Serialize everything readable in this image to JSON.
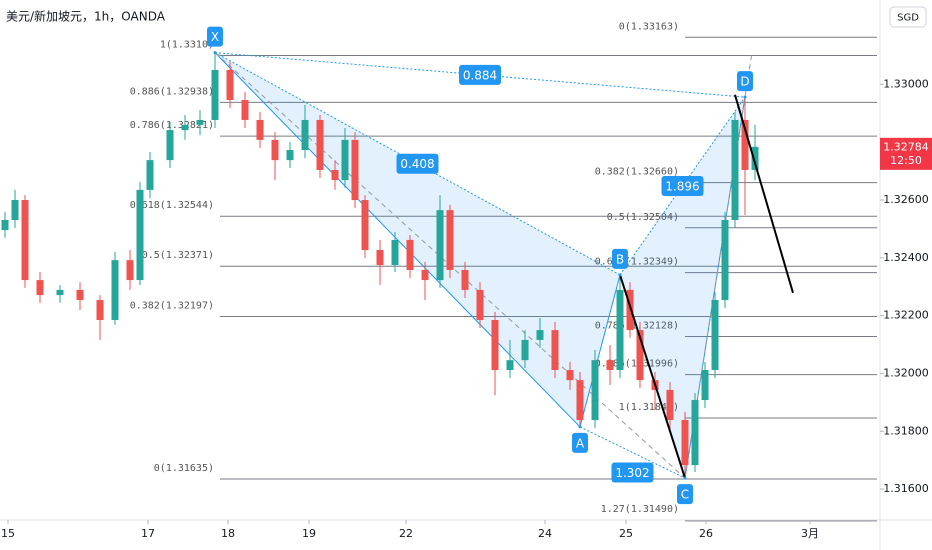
{
  "chart_data": {
    "type": "candlestick",
    "title": "美元/新加坡元，1h，OANDA",
    "currency": "SGD",
    "last_price": 1.32784,
    "countdown": "12:50",
    "up_color": "#26a69a",
    "down_color": "#ef5350",
    "x": [
      1,
      3,
      5,
      8,
      12,
      16,
      20,
      23,
      26,
      28,
      30,
      34,
      37,
      40,
      43,
      46,
      49,
      52,
      55,
      58,
      61,
      64,
      67,
      69,
      71,
      73,
      76,
      79,
      82,
      85,
      88,
      90,
      93,
      96,
      99,
      102,
      105,
      108,
      111,
      114,
      116,
      119,
      122,
      124,
      126,
      128,
      131,
      134,
      137,
      139,
      141,
      143,
      145,
      147,
      149,
      151
    ],
    "open": [
      1.32496,
      1.32531,
      1.326,
      1.32323,
      1.32271,
      1.32289,
      1.32254,
      1.32185,
      1.32392,
      1.32323,
      1.32635,
      1.32738,
      1.32842,
      1.3286,
      1.32877,
      1.3305,
      1.32946,
      1.32877,
      1.32808,
      1.32738,
      1.32773,
      1.32877,
      1.32704,
      1.32669,
      1.32808,
      1.326,
      1.32427,
      1.32375,
      1.32462,
      1.32358,
      1.32323,
      1.32565,
      1.32358,
      1.32289,
      1.32185,
      1.32012,
      1.32046,
      1.32116,
      1.3215,
      1.32012,
      1.31977,
      1.31839,
      1.32046,
      1.32012,
      1.32289,
      1.3215,
      1.31977,
      1.31943,
      1.31839,
      1.31683,
      1.31908,
      1.32012,
      1.32254,
      1.32531,
      1.32877,
      1.32704
    ],
    "high": [
      1.32559,
      1.32635,
      1.32617,
      1.32351,
      1.32306,
      1.32316,
      1.32271,
      1.3242,
      1.32427,
      1.32662,
      1.32766,
      1.3287,
      1.32894,
      1.32911,
      1.33112,
      1.33078,
      1.32974,
      1.32905,
      1.32835,
      1.32801,
      1.32929,
      1.32894,
      1.32738,
      1.32849,
      1.32835,
      1.32617,
      1.32462,
      1.32489,
      1.32479,
      1.32386,
      1.32617,
      1.32583,
      1.32386,
      1.32316,
      1.32213,
      1.32116,
      1.3215,
      1.32192,
      1.32178,
      1.3204,
      1.32005,
      1.32081,
      1.32098,
      1.32341,
      1.32316,
      1.32178,
      1.32005,
      1.3197,
      1.31867,
      1.31932,
      1.3204,
      1.32282,
      1.32559,
      1.32905,
      1.32956,
      1.3286
    ],
    "low": [
      1.32469,
      1.32503,
      1.32296,
      1.32244,
      1.32244,
      1.32219,
      1.32116,
      1.32168,
      1.32289,
      1.32306,
      1.32607,
      1.32711,
      1.32808,
      1.32825,
      1.32849,
      1.32918,
      1.32849,
      1.3278,
      1.32669,
      1.32711,
      1.32745,
      1.32676,
      1.32635,
      1.32642,
      1.32572,
      1.32399,
      1.32306,
      1.32351,
      1.3233,
      1.32254,
      1.32296,
      1.3233,
      1.32261,
      1.32157,
      1.31925,
      1.31984,
      1.32019,
      1.32088,
      1.31984,
      1.31943,
      1.31815,
      1.31811,
      1.3196,
      1.31984,
      1.32123,
      1.3195,
      1.31873,
      1.31804,
      1.31638,
      1.31659,
      1.3188,
      1.31984,
      1.32226,
      1.32503,
      1.32548,
      1.32669
    ],
    "close": [
      1.32531,
      1.326,
      1.32323,
      1.32271,
      1.32289,
      1.32254,
      1.32185,
      1.32392,
      1.32323,
      1.32635,
      1.32738,
      1.32842,
      1.3286,
      1.32877,
      1.3305,
      1.32946,
      1.32877,
      1.32808,
      1.32738,
      1.32773,
      1.32877,
      1.32704,
      1.32669,
      1.32808,
      1.326,
      1.32427,
      1.32375,
      1.32462,
      1.32358,
      1.32323,
      1.32565,
      1.32358,
      1.32289,
      1.32185,
      1.32012,
      1.32046,
      1.32116,
      1.3215,
      1.32012,
      1.31977,
      1.31839,
      1.32046,
      1.32012,
      1.32289,
      1.3215,
      1.31977,
      1.31943,
      1.31839,
      1.31683,
      1.31908,
      1.32012,
      1.32254,
      1.32531,
      1.32877,
      1.32704,
      1.32784
    ],
    "xlim": [
      0,
      176
    ],
    "ylim": [
      1.31493,
      1.33292
    ],
    "xticks": [
      {
        "value": 1.6,
        "label": "15"
      },
      {
        "value": 29.6,
        "label": "17"
      },
      {
        "value": 45.6,
        "label": "18"
      },
      {
        "value": 61.8,
        "label": "19"
      },
      {
        "value": 81.2,
        "label": "22"
      },
      {
        "value": 109,
        "label": "24"
      },
      {
        "value": 125.2,
        "label": "25"
      },
      {
        "value": 141.2,
        "label": "26"
      },
      {
        "value": 162,
        "label": "3月"
      }
    ],
    "yticks": [
      {
        "value": 1.316,
        "label": "1.31600"
      },
      {
        "value": 1.318,
        "label": "1.31800"
      },
      {
        "value": 1.32,
        "label": "1.32000"
      },
      {
        "value": 1.322,
        "label": "1.32200"
      },
      {
        "value": 1.324,
        "label": "1.32400"
      },
      {
        "value": 1.326,
        "label": "1.32600"
      },
      {
        "value": 1.33,
        "label": "1.33000"
      }
    ],
    "fib_retracement_xa": {
      "start_x": 44,
      "levels": [
        {
          "label": "1(1.3310)",
          "value": 1.331
        },
        {
          "label": "0.886(1.32938)",
          "value": 1.32938
        },
        {
          "label": "0.786(1.32821)",
          "value": 1.32821
        },
        {
          "label": "0.618(1.32544)",
          "value": 1.32544
        },
        {
          "label": "0.5(1.32371)",
          "value": 1.32371
        },
        {
          "label": "0.382(1.32197)",
          "value": 1.32197
        },
        {
          "label": "0(1.31635)",
          "value": 1.31635
        }
      ]
    },
    "fib_retracement_bc": {
      "start_x": 137,
      "levels": [
        {
          "label": "0(1.33163)",
          "value": 1.33163
        },
        {
          "label": "0.382(1.32660)",
          "value": 1.3266
        },
        {
          "label": "0.5(1.32504)",
          "value": 1.32504
        },
        {
          "label": "0.618(1.32349)",
          "value": 1.32349
        },
        {
          "label": "0.786(1.32128)",
          "value": 1.32128
        },
        {
          "label": "0.886(1.31996)",
          "value": 1.31996
        },
        {
          "label": "1(1.31846)",
          "value": 1.31846
        },
        {
          "label": "1.27(1.31490)",
          "value": 1.3149
        }
      ]
    },
    "pattern": {
      "points": [
        {
          "label": "X",
          "x": 43,
          "y": 1.3311
        },
        {
          "label": "A",
          "x": 116,
          "y": 1.31815
        },
        {
          "label": "B",
          "x": 124,
          "y": 1.32341
        },
        {
          "label": "C",
          "x": 137,
          "y": 1.31638
        },
        {
          "label": "D",
          "x": 149,
          "y": 1.32956
        }
      ],
      "ratios": [
        0.884,
        0.408,
        1.896,
        1.302
      ]
    },
    "projection": {
      "x": [
        147,
        158.6
      ],
      "y": [
        1.32964,
        1.32279
      ]
    }
  }
}
